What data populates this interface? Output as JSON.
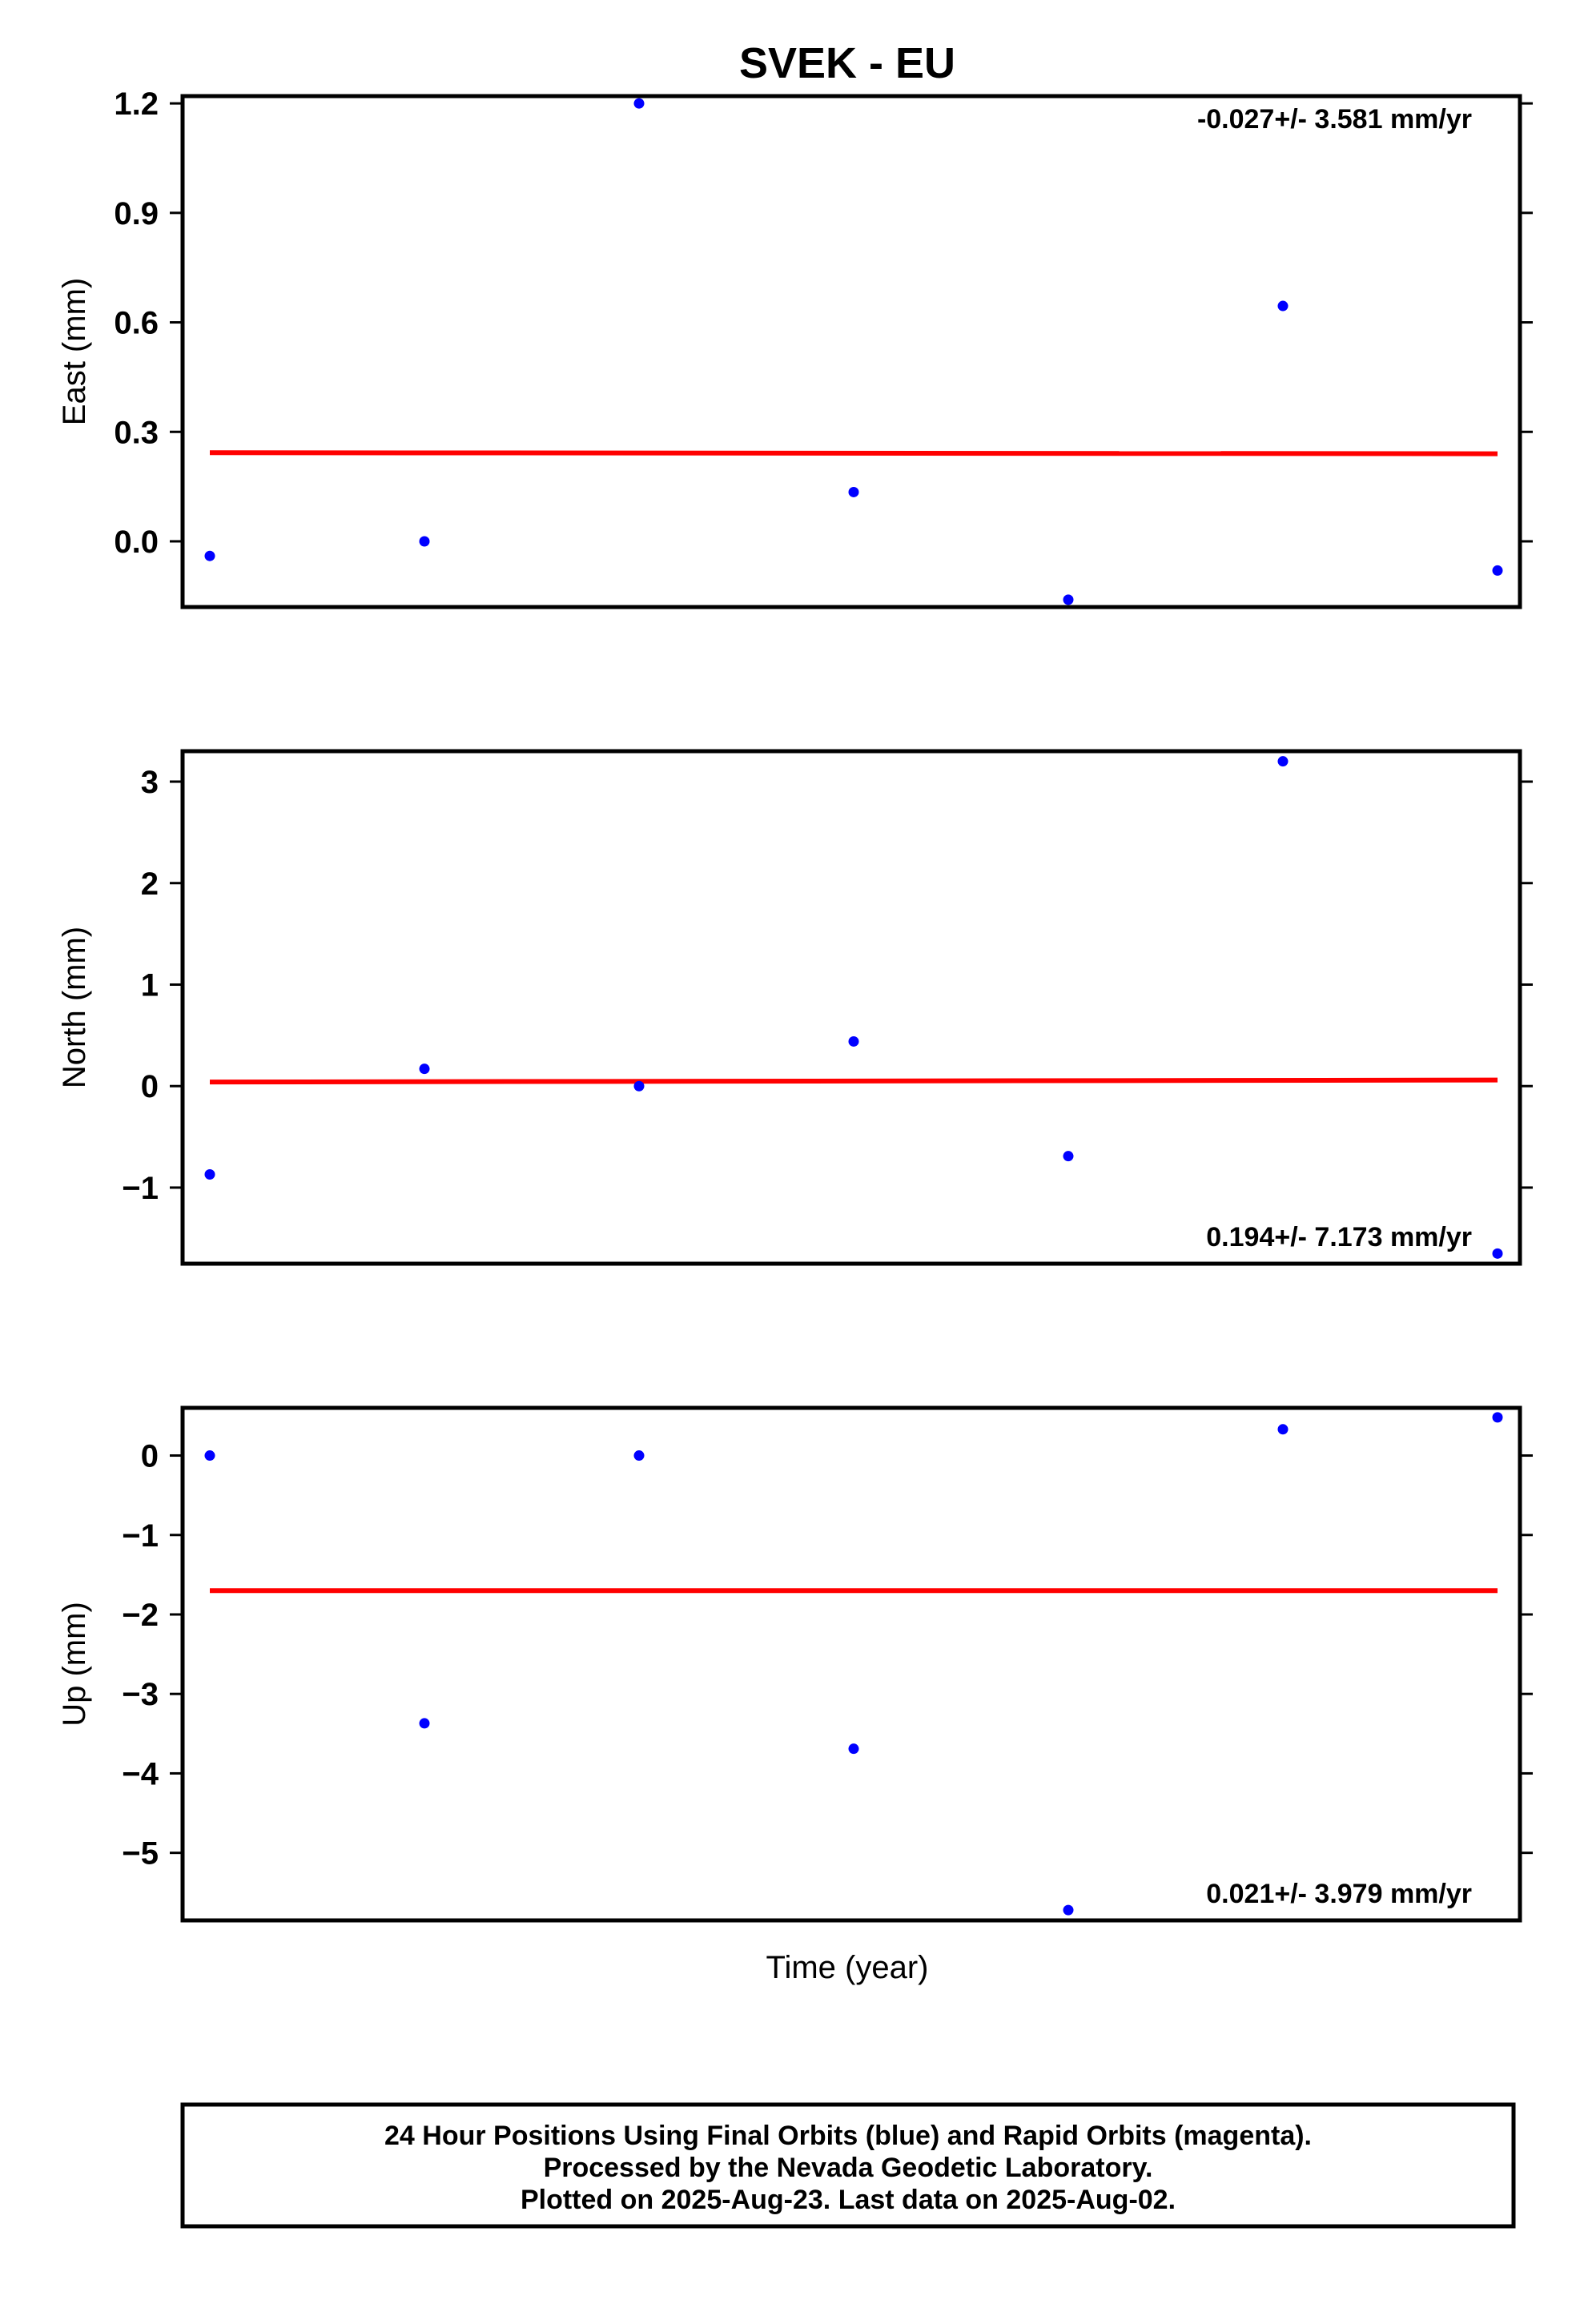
{
  "title": "SVEK - EU",
  "xlabel": "Time (year)",
  "footer": {
    "lines": [
      "24 Hour Positions Using Final Orbits (blue) and Rapid Orbits (magenta).",
      "Processed by the Nevada Geodetic Laboratory.",
      "Plotted on 2025-Aug-23. Last data on 2025-Aug-02."
    ]
  },
  "colors": {
    "points": "#0000ff",
    "fit": "#ff0000",
    "frame": "#000000"
  },
  "chart_data": [
    {
      "type": "scatter",
      "title": "SVEK - EU",
      "ylabel": "East (mm)",
      "ylim": [
        -0.18,
        1.22
      ],
      "yticks": [
        "0.0",
        "0.3",
        "0.6",
        "0.9",
        "1.2"
      ],
      "ytick_values": [
        0,
        0.3,
        0.6,
        0.9,
        1.2
      ],
      "rate_text": "-0.027+/- 3.581 mm/yr",
      "rate_position": "top-right",
      "grid": false,
      "series": [
        {
          "values": [
            -0.04,
            0.0,
            1.2,
            0.135,
            -0.16,
            0.645,
            -0.08
          ]
        }
      ],
      "fit": [
        0.243,
        0.24
      ]
    },
    {
      "type": "scatter",
      "ylabel": "North (mm)",
      "ylim": [
        -1.75,
        3.3
      ],
      "yticks": [
        "−1",
        "0",
        "1",
        "2",
        "3"
      ],
      "ytick_values": [
        -1,
        0,
        1,
        2,
        3
      ],
      "rate_text": "0.194+/- 7.173 mm/yr",
      "rate_position": "bottom-right",
      "grid": false,
      "series": [
        {
          "values": [
            -0.87,
            0.17,
            0.0,
            0.44,
            -0.69,
            3.2,
            -1.65
          ]
        }
      ],
      "fit": [
        0.04,
        0.06
      ]
    },
    {
      "type": "scatter",
      "ylabel": "Up (mm)",
      "ylim": [
        -5.85,
        0.6
      ],
      "yticks": [
        "0",
        "−1",
        "−2",
        "−3",
        "−4",
        "−5"
      ],
      "ytick_values": [
        0,
        -1,
        -2,
        -3,
        -4,
        -5
      ],
      "rate_text": "0.021+/- 3.979 mm/yr",
      "rate_position": "bottom-right",
      "grid": false,
      "series": [
        {
          "values": [
            0.0,
            -3.37,
            0.0,
            -3.69,
            -5.72,
            0.33,
            0.48
          ]
        }
      ],
      "fit": [
        -1.7,
        -1.7
      ]
    }
  ]
}
